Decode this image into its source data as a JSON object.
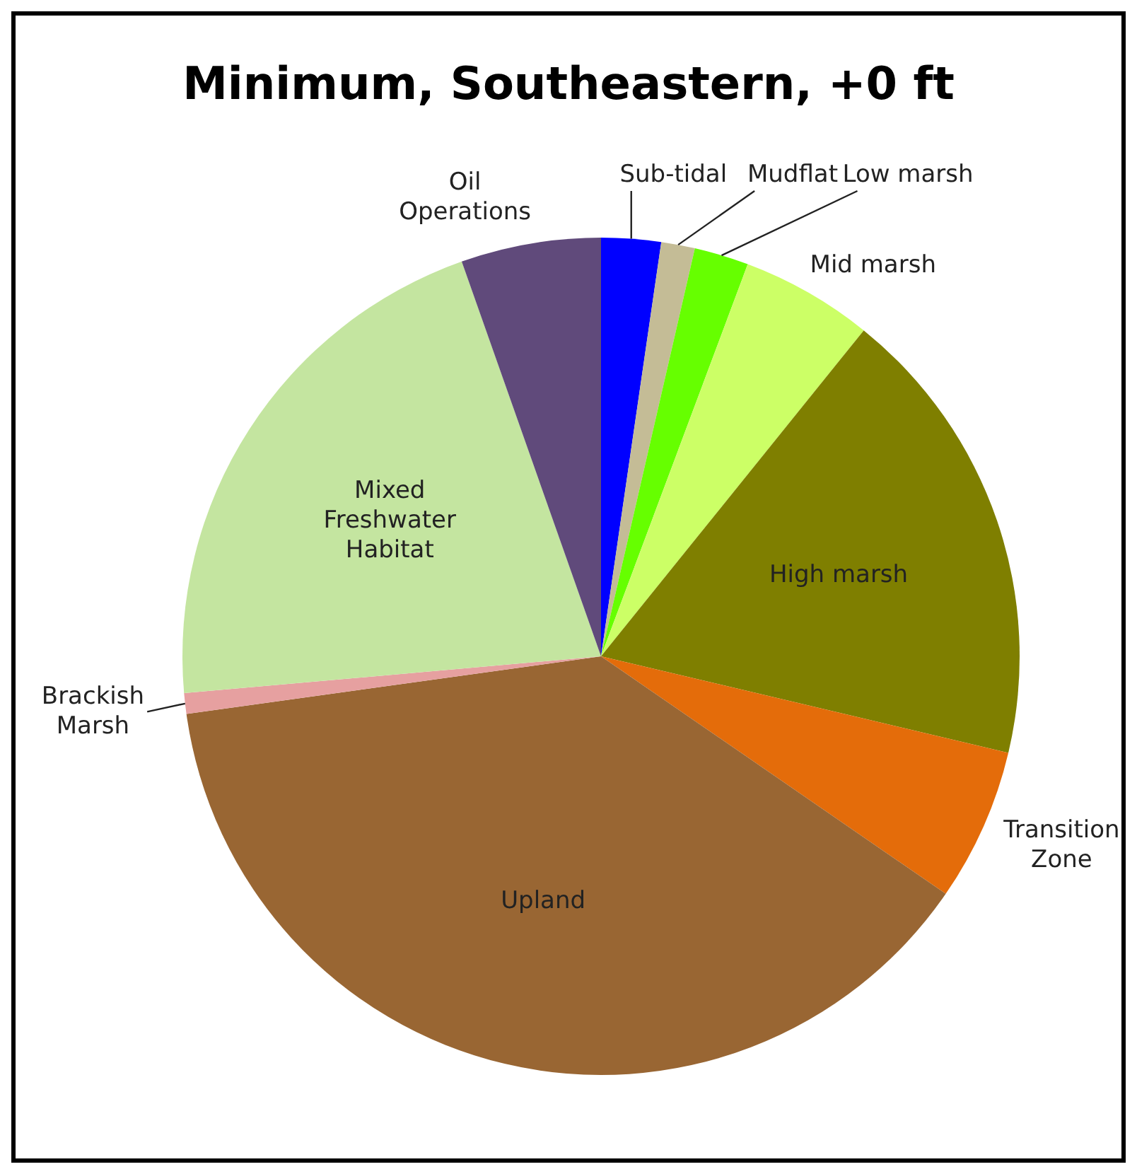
{
  "chart_data": {
    "type": "pie",
    "title": "Minimum, Southeastern, +0 ft",
    "categories": [
      "Sub-tidal",
      "Mudflat",
      "Low marsh",
      "Mid marsh",
      "High marsh",
      "Transition Zone",
      "Upland",
      "Brackish Marsh",
      "Mixed Freshwater Habitat",
      "Oil Operations"
    ],
    "values": [
      2.3,
      1.3,
      2.1,
      5.1,
      17.9,
      5.9,
      38.2,
      0.8,
      21.0,
      5.4
    ],
    "colors": [
      "#0000ff",
      "#c4bc96",
      "#66ff00",
      "#ccff66",
      "#7f7f00",
      "#e46c0a",
      "#996633",
      "#e6a0a0",
      "#c4e5a0",
      "#604a7b"
    ]
  }
}
